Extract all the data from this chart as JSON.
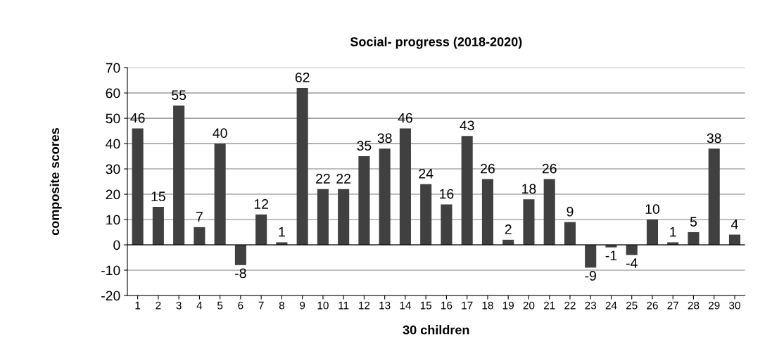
{
  "chart_data": {
    "type": "bar",
    "title": "Social- progress (2018-2020)",
    "xlabel": "30 children",
    "ylabel": "composite scores",
    "categories": [
      "1",
      "2",
      "3",
      "4",
      "5",
      "6",
      "7",
      "8",
      "9",
      "10",
      "11",
      "12",
      "13",
      "14",
      "15",
      "16",
      "17",
      "18",
      "19",
      "20",
      "21",
      "22",
      "23",
      "24",
      "25",
      "26",
      "27",
      "28",
      "29",
      "30"
    ],
    "values": [
      46,
      15,
      55,
      7,
      40,
      -8,
      12,
      1,
      62,
      22,
      22,
      35,
      38,
      46,
      24,
      16,
      43,
      26,
      2,
      18,
      26,
      9,
      -9,
      -1,
      -4,
      10,
      1,
      5,
      38,
      4
    ],
    "color": "#404040",
    "ylim": [
      -20,
      70
    ],
    "yticks": [
      -20,
      -10,
      0,
      10,
      20,
      30,
      40,
      50,
      60,
      70
    ],
    "grid": "y",
    "data_labels": true,
    "legend": false
  }
}
